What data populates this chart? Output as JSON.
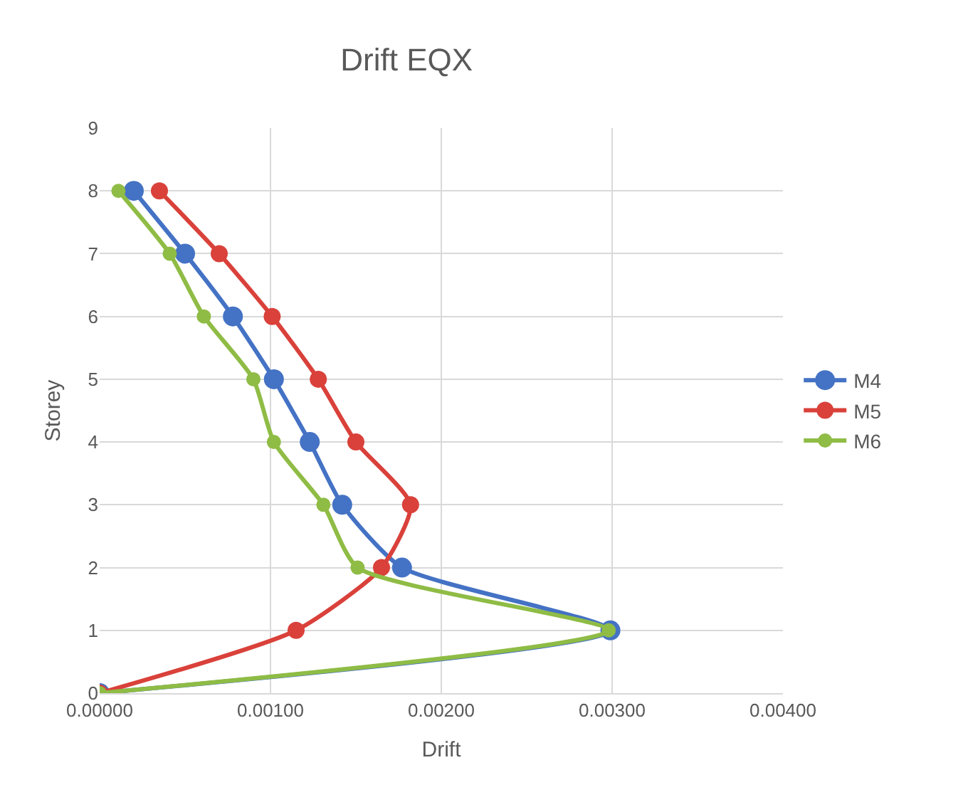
{
  "chart_data": {
    "type": "line",
    "title": "Drift EQX",
    "xlabel": "Drift",
    "ylabel": "Storey",
    "xlim": [
      0,
      0.004
    ],
    "xticks": [
      {
        "value": 0,
        "label": "0.00000"
      },
      {
        "value": 0.001,
        "label": "0.00100"
      },
      {
        "value": 0.002,
        "label": "0.00200"
      },
      {
        "value": 0.003,
        "label": "0.00300"
      },
      {
        "value": 0.004,
        "label": "0.00400"
      }
    ],
    "ylim": [
      0,
      9
    ],
    "yticks": [
      0,
      1,
      2,
      3,
      4,
      5,
      6,
      7,
      8,
      9
    ],
    "grid": true,
    "legend": "right",
    "marker": "circle",
    "line_style": "solid",
    "series": [
      {
        "name": "M4",
        "color": "#4472c4",
        "x": [
          0,
          0.00299,
          0.00177,
          0.00142,
          0.00123,
          0.00102,
          0.00078,
          0.0005,
          0.0002
        ],
        "values": [
          0,
          1,
          2,
          3,
          4,
          5,
          6,
          7,
          8
        ]
      },
      {
        "name": "M5",
        "color": "#d9413a",
        "x": [
          0,
          0.00115,
          0.00165,
          0.00182,
          0.0015,
          0.00128,
          0.00101,
          0.0007,
          0.00035
        ],
        "values": [
          0,
          1,
          2,
          3,
          4,
          5,
          6,
          7,
          8
        ]
      },
      {
        "name": "M6",
        "color": "#8fbc45",
        "x": [
          0,
          0.00298,
          0.00151,
          0.00131,
          0.00102,
          0.0009,
          0.00061,
          0.00041,
          0.00011
        ],
        "values": [
          0,
          1,
          2,
          3,
          4,
          5,
          6,
          7,
          8
        ]
      }
    ]
  }
}
